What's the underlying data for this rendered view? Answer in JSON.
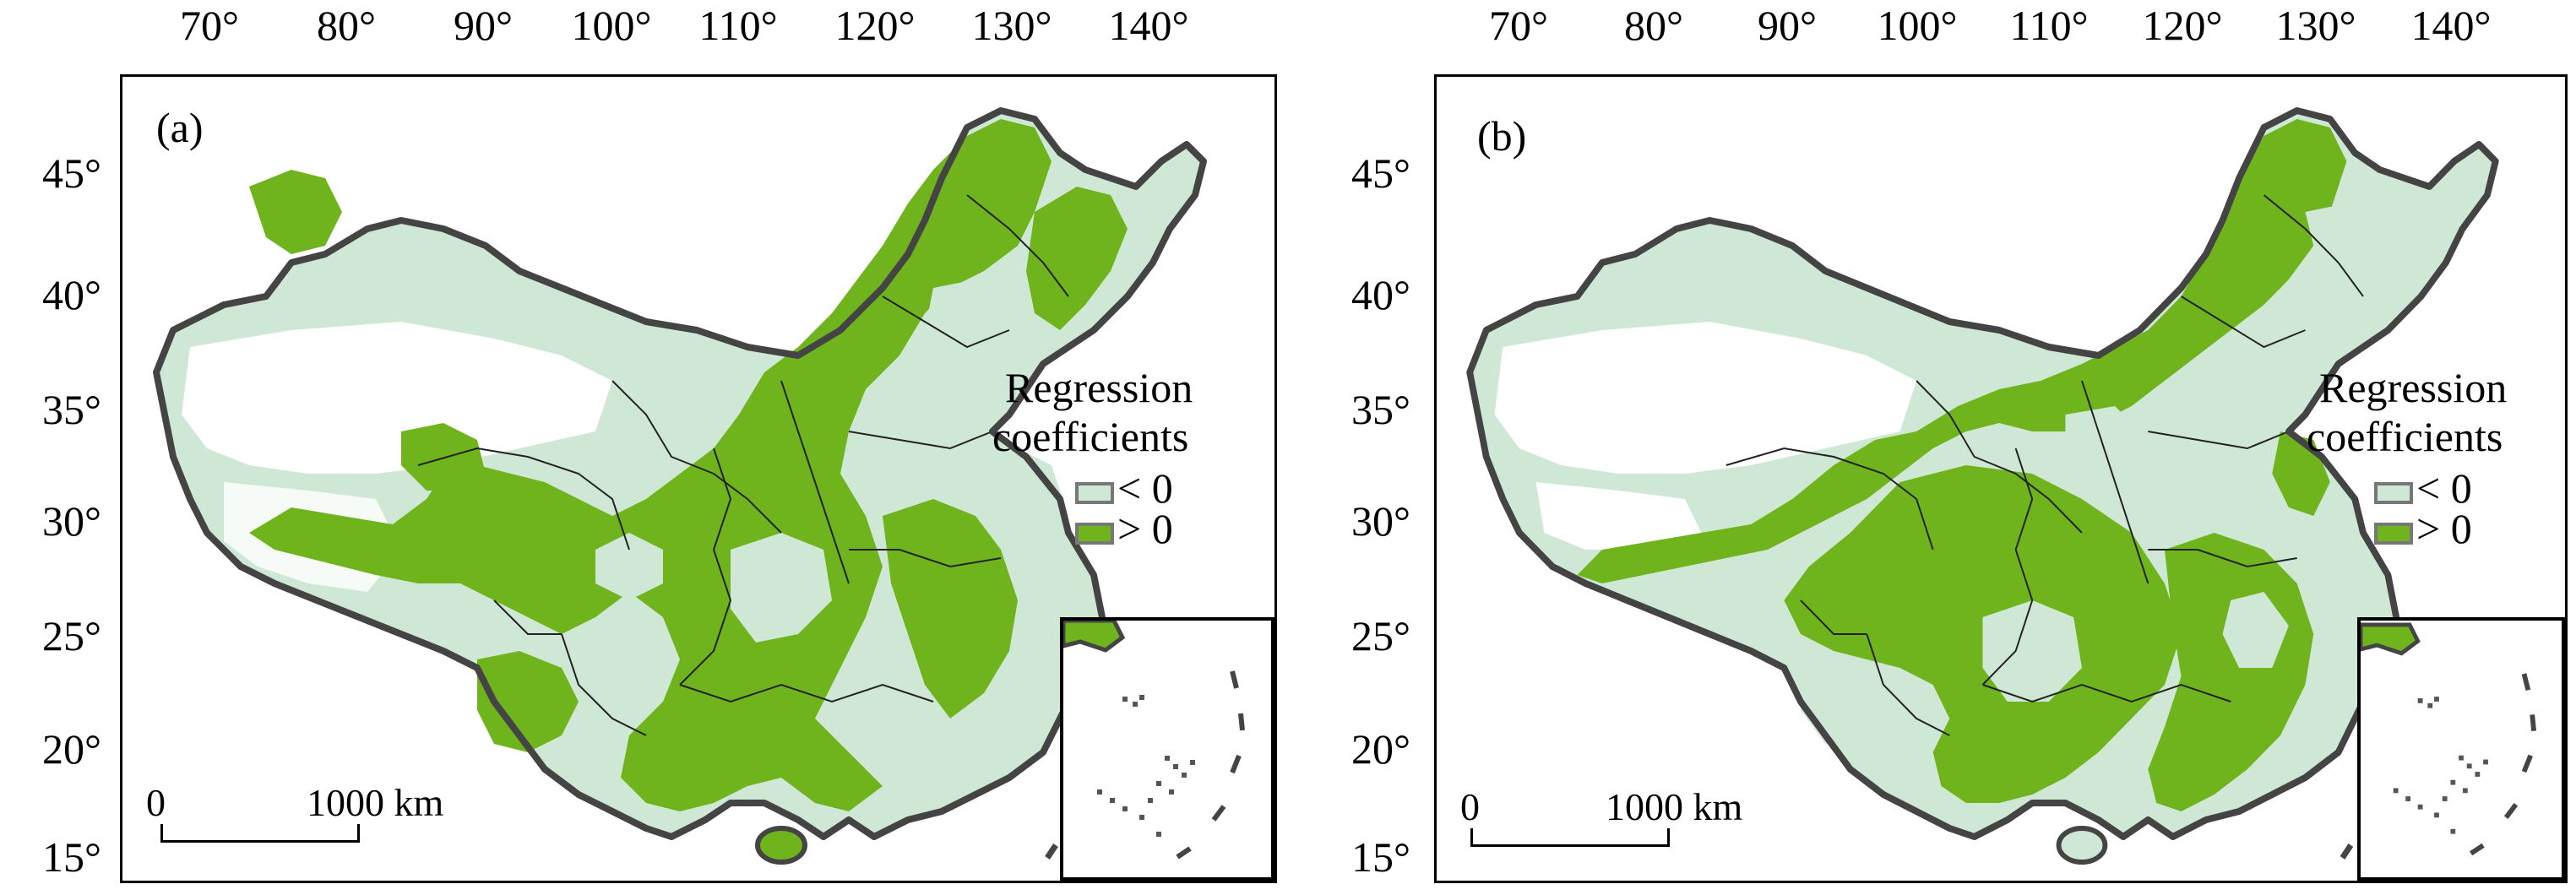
{
  "colors": {
    "negative": "#cfe8d6",
    "positive": "#6fb31d",
    "border": "#444444",
    "province": "#222222",
    "frame": "#000000"
  },
  "longitude_labels": [
    "70°",
    "80°",
    "90°",
    "100°",
    "110°",
    "120°",
    "130°",
    "140°"
  ],
  "latitude_labels": [
    "45°",
    "40°",
    "35°",
    "30°",
    "25°",
    "20°",
    "15°"
  ],
  "legend": {
    "title_line1": "Regression",
    "title_line2": "coefficients",
    "items": [
      {
        "label": "< 0",
        "color": "#cfe8d6"
      },
      {
        "label": "> 0",
        "color": "#6fb31d"
      }
    ]
  },
  "scale_bar": {
    "start": "0",
    "end": "1000 km"
  },
  "panels": [
    {
      "label": "(a)"
    },
    {
      "label": "(b)"
    }
  ]
}
